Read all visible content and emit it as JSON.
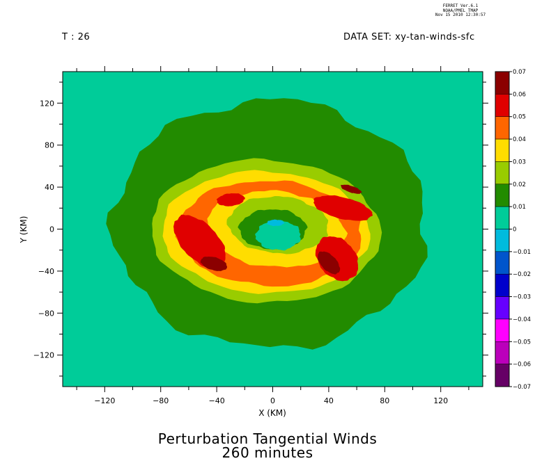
{
  "stamp": {
    "line1": "FERRET Ver.6.1",
    "line2": "NOAA/PMEL TMAP",
    "line3": "Nov 15 2010 12:30:57"
  },
  "header": {
    "time_label": "T : 26",
    "dataset_label": "DATA SET: xy-tan-winds-sfc"
  },
  "titles": {
    "line1": "Perturbation Tangential Winds",
    "line2": "260 minutes"
  },
  "chart_data": {
    "type": "heatmap",
    "xlabel": "X (KM)",
    "ylabel": "Y (KM)",
    "xlim": [
      -150,
      150
    ],
    "ylim": [
      -150,
      150
    ],
    "xticks": [
      -120,
      -80,
      -40,
      0,
      40,
      80,
      120
    ],
    "yticks": [
      -120,
      -80,
      -40,
      0,
      40,
      80,
      120
    ],
    "colorbar": {
      "levels": [
        0.07,
        0.06,
        0.05,
        0.04,
        0.03,
        0.02,
        0.01,
        0,
        -0.01,
        -0.02,
        -0.03,
        -0.04,
        -0.05,
        -0.06,
        -0.07
      ],
      "level_labels": [
        "0.07",
        "0.06",
        "0.05",
        "0.04",
        "0.03",
        "0.02",
        "0.01",
        "0",
        "-0.01",
        "-0.02",
        "-0.03",
        "-0.04",
        "-0.05",
        "-0.06",
        "-0.07"
      ],
      "colors": [
        "#8b0000",
        "#e00000",
        "#ff6600",
        "#ffdd00",
        "#99cc00",
        "#228b00",
        "#00cc99",
        "#00bbdd",
        "#0055cc",
        "#0000cc",
        "#6600ff",
        "#ff00ff",
        "#bb00bb",
        "#660066"
      ]
    },
    "background_color": "#00cc99",
    "field_description_values": {
      "outer_band": 0.01,
      "ring_30": 0.02,
      "ring_40": 0.03,
      "ring_50": 0.04,
      "max_core": 0.06,
      "eye_min": -0.01
    }
  }
}
